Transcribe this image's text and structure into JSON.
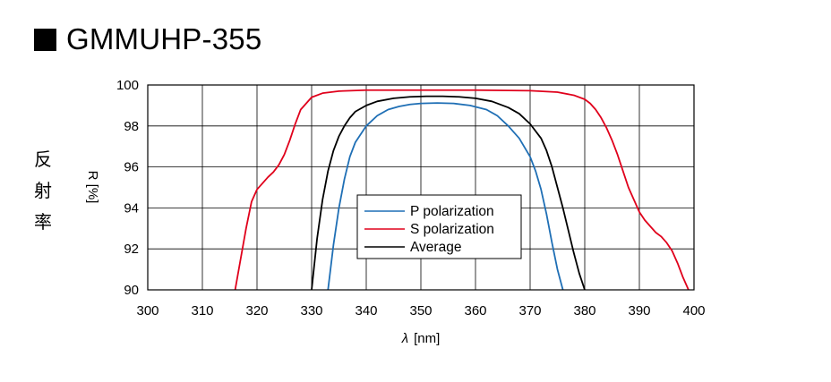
{
  "title": "GMMUHP-355",
  "side_label": [
    "反",
    "射",
    "率"
  ],
  "colors": {
    "p": "#1f6fb5",
    "s": "#e0001b",
    "avg": "#000000",
    "grid": "#000000"
  },
  "chart_data": {
    "type": "line",
    "xlabel_symbol": "λ",
    "xlabel_unit": "[nm]",
    "ylabel": "R [%]",
    "xlim": [
      300,
      400
    ],
    "ylim": [
      90,
      100
    ],
    "xticks": [
      300,
      310,
      320,
      330,
      340,
      350,
      360,
      370,
      380,
      390,
      400
    ],
    "yticks": [
      90,
      92,
      94,
      96,
      98,
      100
    ],
    "grid": true,
    "legend_position": "center",
    "series": [
      {
        "name": "P polarization",
        "color": "#1f6fb5",
        "x": [
          333.0,
          334.0,
          335.0,
          336.0,
          337.0,
          338.0,
          340.0,
          342.0,
          344.0,
          346.0,
          348.0,
          350.0,
          353.0,
          356.0,
          359.0,
          362.0,
          364.0,
          366.0,
          368.0,
          370.0,
          371.0,
          372.0,
          373.0,
          374.0,
          375.0,
          376.0
        ],
        "y": [
          90.0,
          92.2,
          94.0,
          95.4,
          96.5,
          97.2,
          98.0,
          98.5,
          98.8,
          98.95,
          99.05,
          99.1,
          99.12,
          99.1,
          99.0,
          98.8,
          98.5,
          98.0,
          97.4,
          96.5,
          95.8,
          94.9,
          93.7,
          92.3,
          91.0,
          90.0
        ]
      },
      {
        "name": "S polarization",
        "color": "#e0001b",
        "x": [
          316.0,
          317.0,
          318.0,
          319.0,
          320.0,
          321.0,
          322.0,
          323.0,
          324.0,
          325.0,
          326.0,
          327.0,
          328.0,
          330.0,
          332.0,
          335.0,
          340.0,
          350.0,
          360.0,
          370.0,
          375.0,
          378.0,
          380.0,
          381.0,
          382.0,
          383.0,
          384.0,
          385.0,
          386.0,
          387.0,
          388.0,
          389.0,
          390.0,
          391.0,
          392.0,
          393.0,
          394.0,
          395.0,
          396.0,
          397.0,
          398.0,
          399.0
        ],
        "y": [
          90.0,
          91.5,
          93.0,
          94.3,
          94.9,
          95.2,
          95.5,
          95.75,
          96.1,
          96.6,
          97.3,
          98.1,
          98.8,
          99.4,
          99.6,
          99.7,
          99.75,
          99.75,
          99.75,
          99.72,
          99.65,
          99.5,
          99.3,
          99.1,
          98.8,
          98.4,
          97.9,
          97.3,
          96.6,
          95.8,
          95.0,
          94.4,
          93.8,
          93.4,
          93.1,
          92.8,
          92.6,
          92.3,
          91.9,
          91.3,
          90.6,
          90.0
        ]
      },
      {
        "name": "Average",
        "color": "#000000",
        "x": [
          330.0,
          331.0,
          332.0,
          333.0,
          334.0,
          335.0,
          336.0,
          337.0,
          338.0,
          340.0,
          342.0,
          345.0,
          348.0,
          351.0,
          354.0,
          357.0,
          360.0,
          363.0,
          366.0,
          368.0,
          370.0,
          372.0,
          373.0,
          374.0,
          375.0,
          376.0,
          377.0,
          378.0,
          379.0,
          380.0
        ],
        "y": [
          90.0,
          92.5,
          94.4,
          95.8,
          96.8,
          97.5,
          98.0,
          98.4,
          98.7,
          99.0,
          99.2,
          99.35,
          99.42,
          99.45,
          99.45,
          99.42,
          99.35,
          99.2,
          98.9,
          98.6,
          98.1,
          97.4,
          96.8,
          96.0,
          95.0,
          94.0,
          92.9,
          91.8,
          90.8,
          90.0
        ]
      }
    ]
  }
}
